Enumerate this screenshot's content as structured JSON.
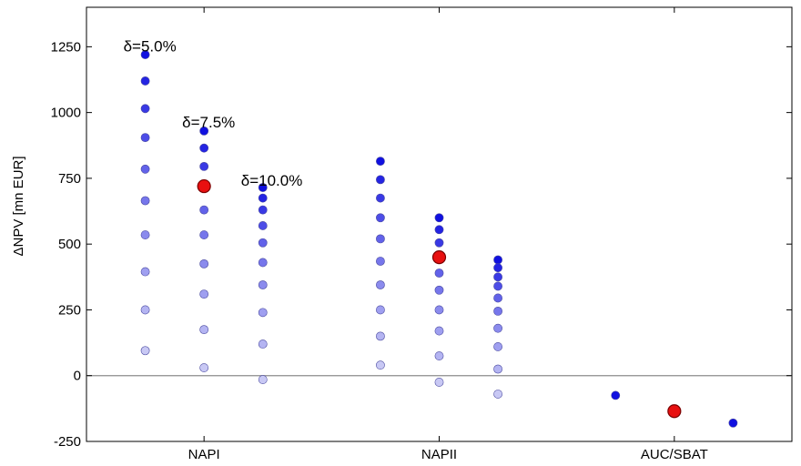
{
  "chart_data": {
    "type": "scatter",
    "title": "",
    "xlabel": "",
    "ylabel": "ΔNPV [mn EUR]",
    "ylim": [
      -250,
      1400
    ],
    "yticks": [
      -250,
      0,
      250,
      500,
      750,
      1000,
      1250
    ],
    "categories": [
      "NAPI",
      "NAPII",
      "AUC/SBAT"
    ],
    "grid": false,
    "zero_line": true,
    "colors": {
      "point_dark": "#1010e0",
      "point_light": "#c8c8f4",
      "highlight": "#e81010",
      "highlight_edge": "#7a0000"
    },
    "annotations": [
      {
        "text": "δ=5.0%",
        "near_x": 1.0,
        "y": 1250
      },
      {
        "text": "δ=7.5%",
        "near_x": 2.0,
        "y": 960
      },
      {
        "text": "δ=10.0%",
        "near_x": 3.0,
        "y": 740
      }
    ],
    "series": [
      {
        "x": 1.0,
        "values": [
          1220,
          1120,
          1015,
          905,
          785,
          665,
          535,
          395,
          250,
          95
        ]
      },
      {
        "x": 2.0,
        "values": [
          930,
          865,
          795,
          715,
          630,
          535,
          425,
          310,
          175,
          30
        ]
      },
      {
        "x": 3.0,
        "values": [
          715,
          675,
          630,
          570,
          505,
          430,
          345,
          240,
          120,
          -15
        ]
      },
      {
        "x": 5.0,
        "values": [
          815,
          745,
          675,
          600,
          520,
          435,
          345,
          250,
          150,
          40
        ]
      },
      {
        "x": 6.0,
        "values": [
          600,
          555,
          505,
          450,
          390,
          325,
          250,
          170,
          75,
          -25
        ]
      },
      {
        "x": 7.0,
        "values": [
          440,
          410,
          375,
          340,
          295,
          245,
          180,
          110,
          25,
          -70
        ]
      },
      {
        "x": 9.0,
        "values": [
          -75
        ]
      },
      {
        "x": 11.0,
        "values": [
          -180
        ]
      }
    ],
    "highlights": [
      {
        "x": 2.0,
        "y": 720
      },
      {
        "x": 6.0,
        "y": 450
      },
      {
        "x": 10.0,
        "y": -135
      }
    ],
    "category_positions": [
      2.0,
      6.0,
      10.0
    ],
    "xlim": [
      0,
      12
    ]
  }
}
